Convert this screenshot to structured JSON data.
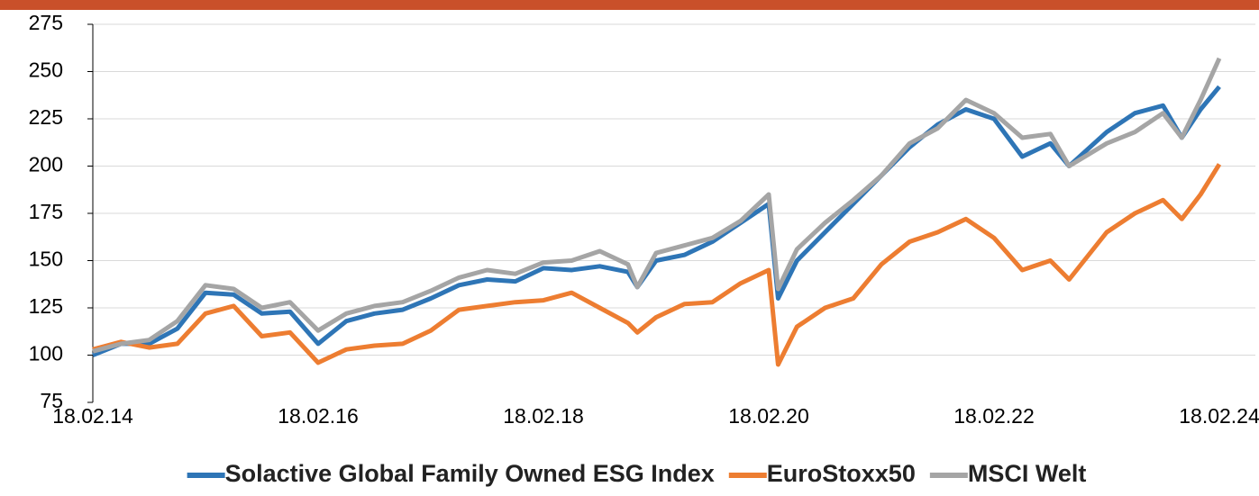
{
  "chart_data": {
    "type": "line",
    "x": [
      "18.02.14",
      "18.05.14",
      "18.08.14",
      "18.11.14",
      "18.02.15",
      "18.05.15",
      "18.08.15",
      "18.11.15",
      "18.02.16",
      "18.05.16",
      "18.08.16",
      "18.11.16",
      "18.02.17",
      "18.05.17",
      "18.08.17",
      "18.11.17",
      "18.02.18",
      "18.05.18",
      "18.08.18",
      "18.11.18",
      "18.12.18",
      "18.02.19",
      "18.05.19",
      "18.08.19",
      "18.11.19",
      "18.02.20",
      "18.03.20",
      "18.05.20",
      "18.08.20",
      "18.11.20",
      "18.02.21",
      "18.05.21",
      "18.08.21",
      "18.11.21",
      "18.02.22",
      "18.05.22",
      "18.08.22",
      "18.10.22",
      "18.02.23",
      "18.05.23",
      "18.08.23",
      "18.10.23",
      "18.12.23",
      "18.02.24"
    ],
    "series": [
      {
        "name": "Solactive Global Family Owned ESG Index",
        "color": "#2e75b6",
        "values": [
          100,
          106,
          106,
          114,
          133,
          132,
          122,
          123,
          106,
          118,
          122,
          124,
          130,
          137,
          140,
          139,
          146,
          145,
          147,
          144,
          136,
          150,
          153,
          160,
          170,
          180,
          130,
          150,
          165,
          180,
          195,
          210,
          222,
          230,
          225,
          205,
          212,
          200,
          218,
          228,
          232,
          215,
          230,
          242
        ]
      },
      {
        "name": "EuroStoxx50",
        "color": "#ed7d31",
        "values": [
          103,
          107,
          104,
          106,
          122,
          126,
          110,
          112,
          96,
          103,
          105,
          106,
          113,
          124,
          126,
          128,
          129,
          133,
          125,
          117,
          112,
          120,
          127,
          128,
          138,
          145,
          95,
          115,
          125,
          130,
          148,
          160,
          165,
          172,
          162,
          145,
          150,
          140,
          165,
          175,
          182,
          172,
          185,
          201
        ]
      },
      {
        "name": "MSCI Welt",
        "color": "#a5a5a5",
        "values": [
          102,
          106,
          108,
          118,
          137,
          135,
          125,
          128,
          113,
          122,
          126,
          128,
          134,
          141,
          145,
          143,
          149,
          150,
          155,
          148,
          136,
          154,
          158,
          162,
          171,
          185,
          135,
          156,
          170,
          182,
          195,
          212,
          220,
          235,
          228,
          215,
          217,
          200,
          212,
          218,
          228,
          215,
          235,
          257
        ]
      }
    ],
    "xlim": [
      "18.02.14",
      "18.02.24"
    ],
    "xticks": [
      "18.02.14",
      "18.02.16",
      "18.02.18",
      "18.02.20",
      "18.02.22",
      "18.02.24"
    ],
    "ylim": [
      75,
      275
    ],
    "yticks": [
      75,
      100,
      125,
      150,
      175,
      200,
      225,
      250,
      275
    ],
    "grid": true,
    "legend": "bottom"
  }
}
